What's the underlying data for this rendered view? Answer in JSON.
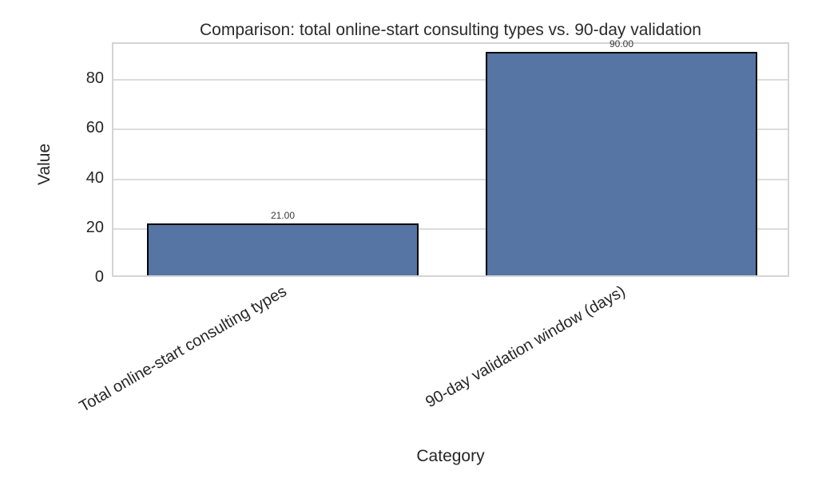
{
  "chart_data": {
    "type": "bar",
    "title": "Comparison: total online-start consulting types vs. 90-day validation",
    "xlabel": "Category",
    "ylabel": "Value",
    "categories": [
      "Total online-start consulting types",
      "90-day validation window (days)"
    ],
    "values": [
      21,
      90
    ],
    "value_labels": [
      "21.00",
      "90.00"
    ],
    "yticks": [
      0,
      20,
      40,
      60,
      80
    ],
    "ylim": [
      0,
      94.5
    ],
    "grid": "horizontal",
    "legend": "none",
    "bar_color": "#5674a4",
    "bar_edge_color": "#000000",
    "grid_color": "#dcdcdc",
    "text_color": "#262626",
    "xtick_rotation_deg": 30
  }
}
